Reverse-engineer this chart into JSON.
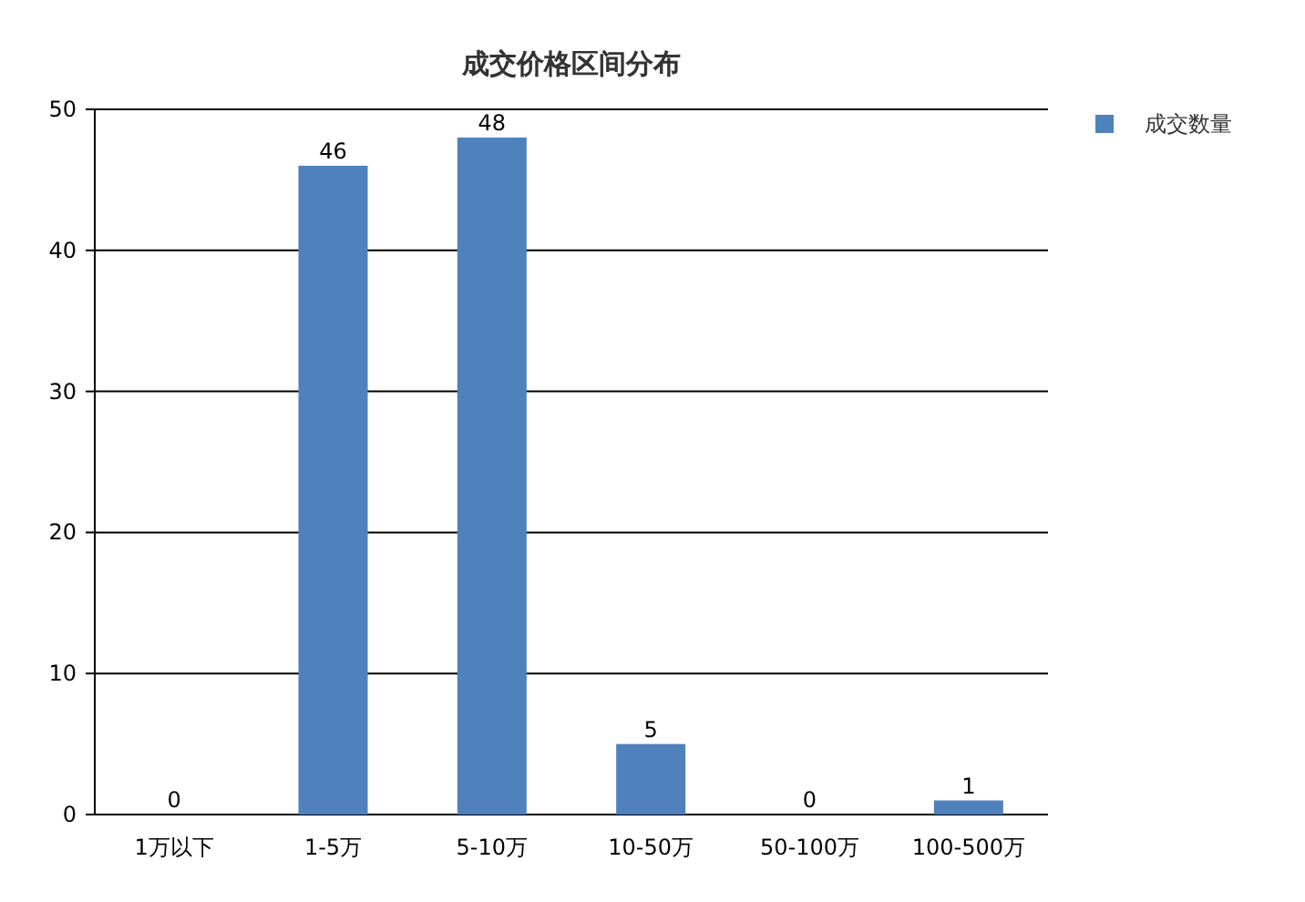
{
  "chart_data": {
    "type": "bar",
    "title": "成交价格区间分布",
    "categories": [
      "1万以下",
      "1-5万",
      "5-10万",
      "10-50万",
      "50-100万",
      "100-500万"
    ],
    "series": [
      {
        "name": "成交数量",
        "color": "#4f81bd",
        "values": [
          0,
          46,
          48,
          5,
          0,
          1
        ]
      }
    ],
    "ylim": [
      0,
      50
    ],
    "yticks": [
      0,
      10,
      20,
      30,
      40,
      50
    ],
    "grid": "y",
    "legend": "top right",
    "data_labels": true
  }
}
